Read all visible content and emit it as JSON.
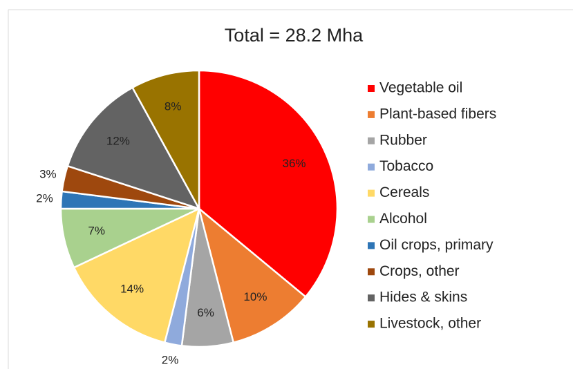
{
  "chart_data": {
    "type": "pie",
    "title": "Total = 28.2 Mha",
    "categories": [
      "Vegetable oil",
      "Plant-based fibers",
      "Rubber",
      "Tobacco",
      "Cereals",
      "Alcohol",
      "Oil crops, primary",
      "Crops, other",
      "Hides & skins",
      "Livestock, other"
    ],
    "values": [
      36,
      10,
      6,
      2,
      14,
      7,
      2,
      3,
      12,
      8
    ],
    "value_labels": [
      "36%",
      "10%",
      "6%",
      "2%",
      "14%",
      "7%",
      "2%",
      "3%",
      "12%",
      "8%"
    ],
    "colors": [
      "#ff0000",
      "#ed7d31",
      "#a5a5a5",
      "#8faadc",
      "#ffd966",
      "#a9d18e",
      "#2e75b6",
      "#9e480e",
      "#636363",
      "#997300"
    ],
    "legend": "right"
  }
}
